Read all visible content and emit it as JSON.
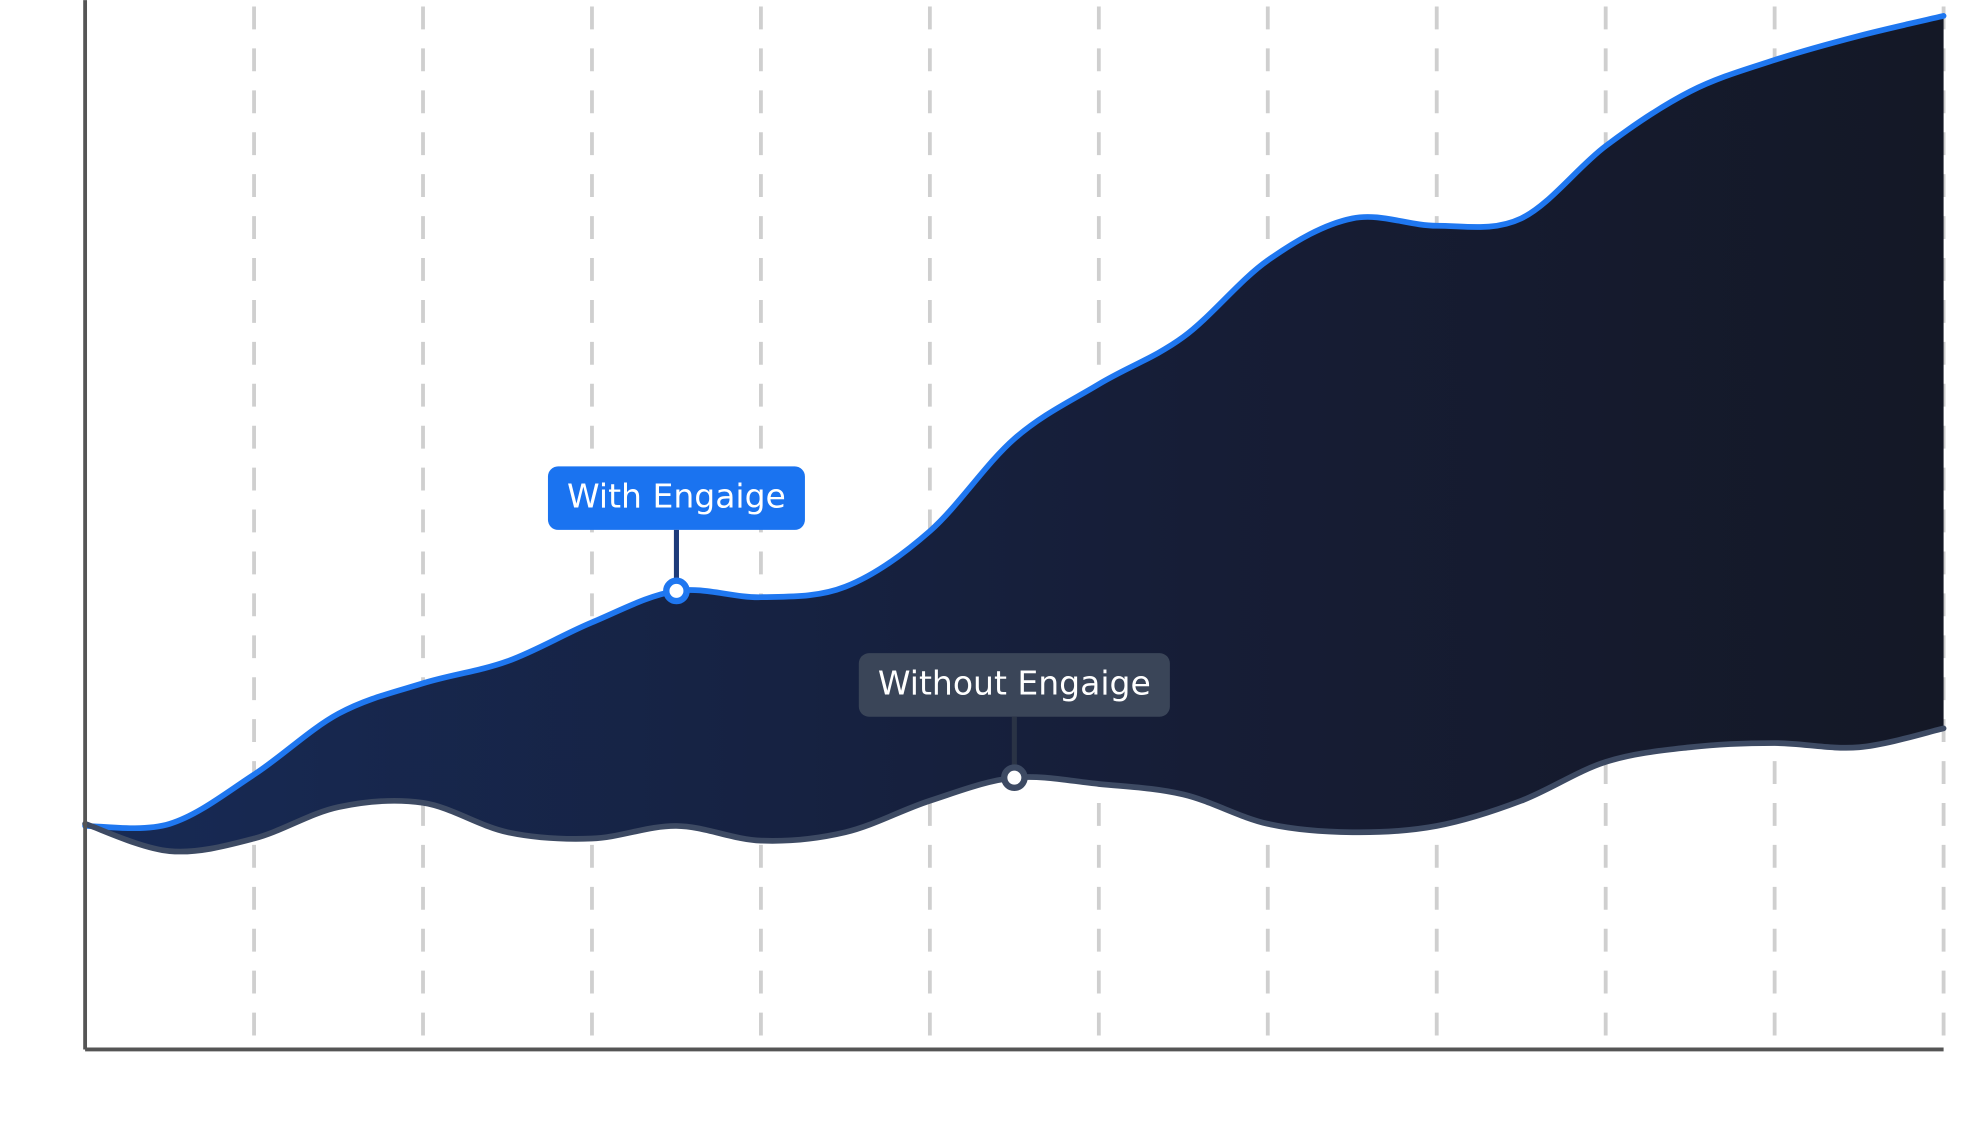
{
  "chart_data": {
    "type": "area-between",
    "x": [
      0,
      0.5,
      1,
      1.5,
      2,
      2.5,
      3,
      3.5,
      4,
      4.5,
      5,
      5.5,
      6,
      6.5,
      7,
      7.5,
      8,
      8.5,
      9,
      9.5,
      10,
      10.5,
      11
    ],
    "series": [
      {
        "name": "With Engaige",
        "color": "#1f77f0",
        "values": [
          21.3,
          21.5,
          26.2,
          32.0,
          34.9,
          37.0,
          40.7,
          43.7,
          43.1,
          44.1,
          49.4,
          58.2,
          63.4,
          67.9,
          75.2,
          79.2,
          78.5,
          79.2,
          86.1,
          91.3,
          94.3,
          96.6,
          98.5
        ]
      },
      {
        "name": "Without Engaige",
        "color": "#3d4a63",
        "values": [
          21.5,
          18.9,
          20.1,
          23.1,
          23.5,
          20.7,
          20.1,
          21.3,
          19.9,
          20.7,
          23.7,
          25.9,
          25.3,
          24.3,
          21.5,
          20.7,
          21.3,
          23.7,
          27.4,
          28.8,
          29.2,
          28.8,
          30.6
        ]
      }
    ],
    "annotations": [
      {
        "text": "With Engaige",
        "series": 0,
        "x": 3.5
      },
      {
        "text": "Without Engaige",
        "series": 1,
        "x": 5.5
      }
    ],
    "xlim": [
      0,
      11
    ],
    "xticks": [
      1,
      2,
      3,
      4,
      5,
      6,
      7,
      8,
      9,
      10,
      11
    ],
    "ylim": [
      0,
      100
    ],
    "grid": true
  }
}
